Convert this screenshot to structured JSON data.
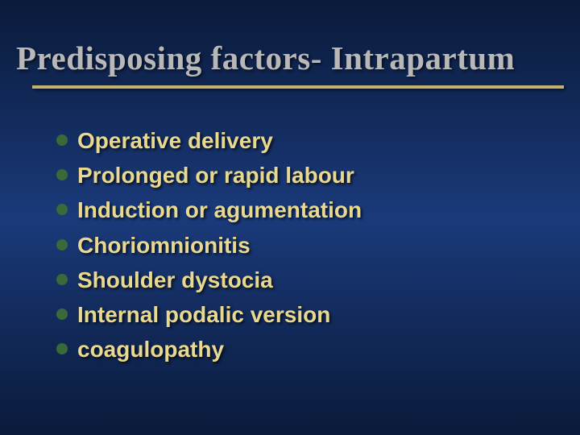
{
  "slide": {
    "title": "Predisposing factors- Intrapartum",
    "title_color": "#b8b8b8",
    "title_fontsize": 41,
    "underline_color": "#c4b070",
    "background_gradient": [
      "#0a1a3a",
      "#1a3a7a",
      "#0a1a3a"
    ],
    "bullet_color": "#3a6a3a",
    "text_color": "#e8d890",
    "text_fontsize": 28,
    "items": [
      "Operative delivery",
      "Prolonged or rapid labour",
      "Induction or agumentation",
      "Choriomnionitis",
      "Shoulder dystocia",
      "Internal podalic version",
      "coagulopathy"
    ]
  }
}
